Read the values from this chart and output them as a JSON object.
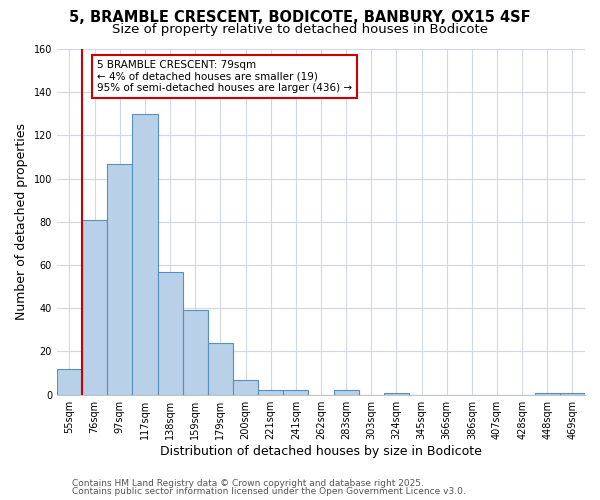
{
  "title": "5, BRAMBLE CRESCENT, BODICOTE, BANBURY, OX15 4SF",
  "subtitle": "Size of property relative to detached houses in Bodicote",
  "xlabel": "Distribution of detached houses by size in Bodicote",
  "ylabel": "Number of detached properties",
  "bin_labels": [
    "55sqm",
    "76sqm",
    "97sqm",
    "117sqm",
    "138sqm",
    "159sqm",
    "179sqm",
    "200sqm",
    "221sqm",
    "241sqm",
    "262sqm",
    "283sqm",
    "303sqm",
    "324sqm",
    "345sqm",
    "366sqm",
    "386sqm",
    "407sqm",
    "428sqm",
    "448sqm",
    "469sqm"
  ],
  "bar_values": [
    12,
    81,
    107,
    130,
    57,
    39,
    24,
    7,
    2,
    2,
    0,
    2,
    0,
    1,
    0,
    0,
    0,
    0,
    0,
    1,
    1
  ],
  "bar_color": "#b8d0e8",
  "bar_edge_color": "#5590c0",
  "red_line_index": 1,
  "red_line_color": "#cc0000",
  "annotation_text": "5 BRAMBLE CRESCENT: 79sqm\n← 4% of detached houses are smaller (19)\n95% of semi-detached houses are larger (436) →",
  "annotation_box_facecolor": "#ffffff",
  "annotation_box_edgecolor": "#cc0000",
  "ylim": [
    0,
    160
  ],
  "yticks": [
    0,
    20,
    40,
    60,
    80,
    100,
    120,
    140,
    160
  ],
  "footer_line1": "Contains HM Land Registry data © Crown copyright and database right 2025.",
  "footer_line2": "Contains public sector information licensed under the Open Government Licence v3.0.",
  "bg_color": "#ffffff",
  "grid_color": "#d0d8e8",
  "title_fontsize": 10.5,
  "subtitle_fontsize": 9.5,
  "xlabel_fontsize": 9,
  "ylabel_fontsize": 9,
  "tick_fontsize": 7,
  "annotation_fontsize": 7.5,
  "footer_fontsize": 6.5
}
